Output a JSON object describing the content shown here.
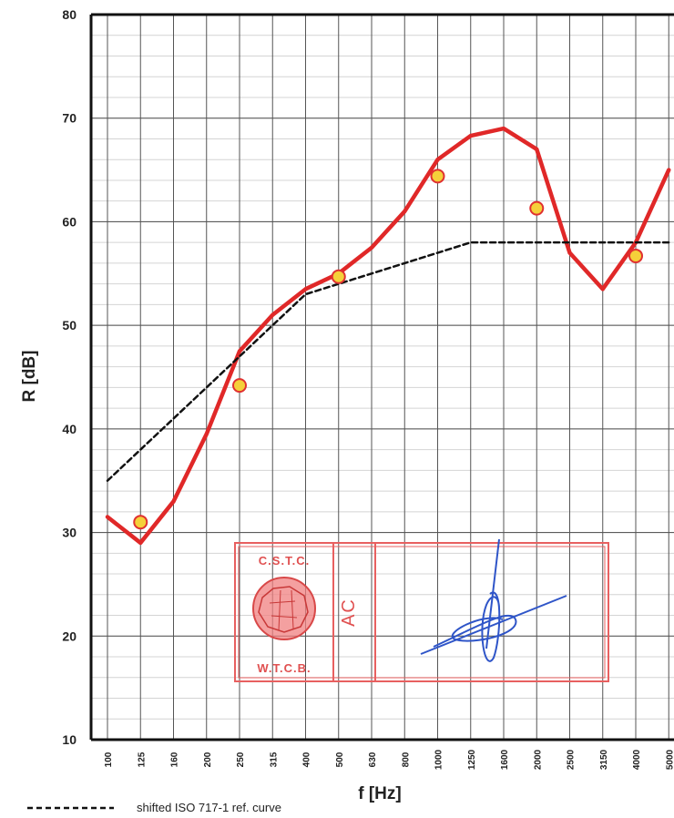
{
  "chart_data": {
    "type": "line",
    "xlabel": "f [Hz]",
    "ylabel": "R [dB]",
    "ylim": [
      10,
      80
    ],
    "y_ticks": [
      10,
      20,
      30,
      40,
      50,
      60,
      70,
      80
    ],
    "categories": [
      "100",
      "125",
      "160",
      "200",
      "250",
      "315",
      "400",
      "500",
      "630",
      "800",
      "1000",
      "1250",
      "1600",
      "2000",
      "2500",
      "3150",
      "4000",
      "5000"
    ],
    "grid": true,
    "legend": {
      "position": "bottom-left",
      "entries": [
        "shifted ISO 717-1 ref. curve"
      ]
    },
    "series": [
      {
        "name": "",
        "style": "solid",
        "color": "#e02828",
        "values": [
          31.5,
          29,
          33,
          39.5,
          47.5,
          51,
          53.5,
          55,
          57.5,
          61,
          66,
          68.3,
          69,
          67,
          57,
          53.5,
          58,
          65
        ]
      },
      {
        "name": "shifted ISO 717-1 ref. curve",
        "style": "dashed",
        "color": "#111111",
        "values": [
          35,
          38,
          41,
          44,
          47,
          50,
          53,
          54,
          55,
          56,
          57,
          58,
          58,
          58,
          58,
          58,
          58,
          58
        ]
      },
      {
        "name": "",
        "style": "markers",
        "color": "#f5d03a",
        "marker_edge": "#e03030",
        "points": [
          {
            "x": "125",
            "y": 31
          },
          {
            "x": "250",
            "y": 44.2
          },
          {
            "x": "500",
            "y": 54.7
          },
          {
            "x": "1000",
            "y": 64.4
          },
          {
            "x": "2000",
            "y": 61.3
          },
          {
            "x": "4000",
            "y": 56.7
          }
        ]
      }
    ]
  },
  "stamp": {
    "line1": "C.S.T.C.",
    "line2": "W.T.C.B.",
    "initials": "AC"
  }
}
